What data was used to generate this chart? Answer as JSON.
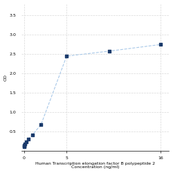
{
  "x": [
    0.0156,
    0.0313,
    0.0625,
    0.125,
    0.25,
    0.5,
    1,
    2,
    5,
    10,
    16
  ],
  "y": [
    0.12,
    0.13,
    0.15,
    0.18,
    0.23,
    0.3,
    0.42,
    0.68,
    2.45,
    2.58,
    2.75
  ],
  "line_color": "#a8c8e8",
  "marker_color": "#1a3a6b",
  "marker_size": 10,
  "xlabel_line1": "Human Transcription elongation factor B polypeptide 2",
  "xlabel_line2": "Concentration (ng/ml)",
  "ylabel": "OD",
  "xlim": [
    -0.3,
    17
  ],
  "ylim": [
    0,
    3.8
  ],
  "yticks": [
    0.5,
    1.0,
    1.5,
    2.0,
    2.5,
    3.0,
    3.5
  ],
  "xticks": [
    0,
    5,
    16
  ],
  "grid_color": "#d8d8d8",
  "bg_color": "#ffffff",
  "label_fontsize": 4.5,
  "tick_fontsize": 4.5
}
